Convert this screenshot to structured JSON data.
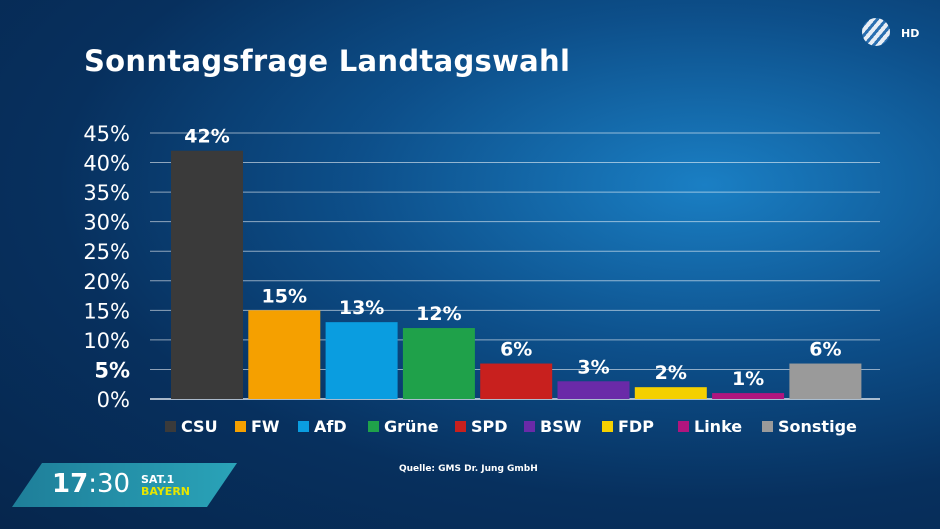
{
  "title": "Sonntagsfrage Landtagswahl",
  "channel": {
    "logo_text": "HD",
    "time_hours": "17",
    "time_minutes": ":30",
    "station": "SAT.1",
    "region": "BAYERN"
  },
  "source": "Quelle: GMS Dr. Jung GmbH",
  "chart_data": {
    "type": "bar",
    "title": "Sonntagsfrage Landtagswahl",
    "categories": [
      "CSU",
      "FW",
      "AfD",
      "Grüne",
      "SPD",
      "BSW",
      "FDP",
      "Linke",
      "Sonstige"
    ],
    "values": [
      42,
      15,
      13,
      12,
      6,
      3,
      2,
      1,
      6
    ],
    "data_labels": [
      "42%",
      "15%",
      "13%",
      "12%",
      "6%",
      "3%",
      "2%",
      "1%",
      "6%"
    ],
    "colors": [
      "#3a3a3a",
      "#f5a000",
      "#0a9de0",
      "#1fa14a",
      "#c8201e",
      "#6a2aa8",
      "#f4d000",
      "#b0157e",
      "#9a9a9a"
    ],
    "yticks": [
      "0%",
      "5%",
      "10%",
      "15%",
      "20%",
      "25%",
      "30%",
      "35%",
      "40%",
      "45%"
    ],
    "ylim": [
      0,
      45
    ],
    "grid": true,
    "legend": "bottom"
  }
}
